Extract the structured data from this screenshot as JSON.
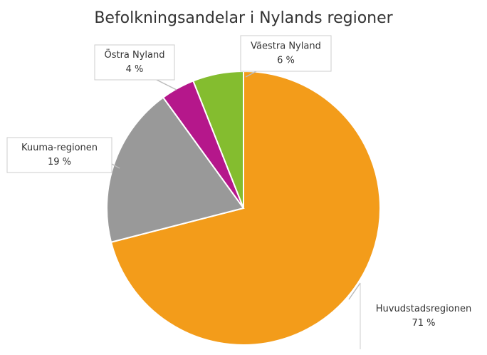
{
  "chart_data": {
    "type": "pie",
    "title": "Befolkningsandelar i Nylands regioner",
    "categories": [
      "Huvudstadsregionen",
      "Kuuma-regionen",
      "Östra Nyland",
      "Väestra Nyland"
    ],
    "values": [
      71,
      19,
      4,
      6
    ],
    "value_labels": [
      "71 %",
      "19 %",
      "4 %",
      "6 %"
    ],
    "colors": [
      "#f39c1a",
      "#999999",
      "#b5178b",
      "#84bd2f"
    ]
  }
}
